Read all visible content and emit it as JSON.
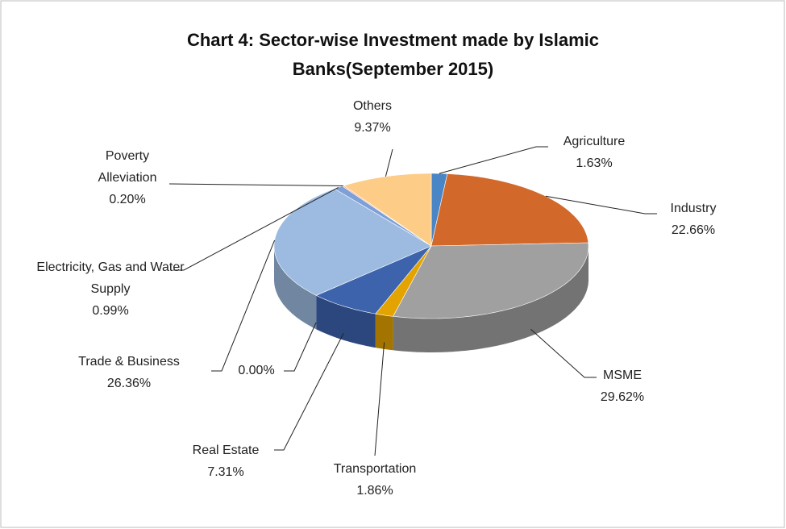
{
  "chart_data": {
    "type": "pie",
    "title": "Chart 4: Sector-wise Investment made by Islamic Banks(September 2015)",
    "categories": [
      "Agriculture",
      "Industry",
      "MSME",
      "Transportation",
      "Real Estate",
      null,
      "Trade & Business",
      "Electricity, Gas and Water Supply",
      "Poverty Alleviation",
      "Others"
    ],
    "values": [
      1.63,
      22.66,
      29.62,
      1.86,
      7.31,
      0.0,
      26.36,
      0.99,
      0.2,
      9.37
    ],
    "value_labels": [
      "1.63%",
      "22.66%",
      "29.62%",
      "1.86%",
      "7.31%",
      "0.00%",
      "26.36%",
      "0.99%",
      "0.20%",
      "9.37%"
    ],
    "colors": [
      "#4a86c5",
      "#d2692a",
      "#a0a0a0",
      "#e3a300",
      "#3d63ad",
      "#6a8fd0",
      "#9dbbe0",
      "#7ea0d8",
      "#f0a68a",
      "#fdcd88"
    ]
  }
}
